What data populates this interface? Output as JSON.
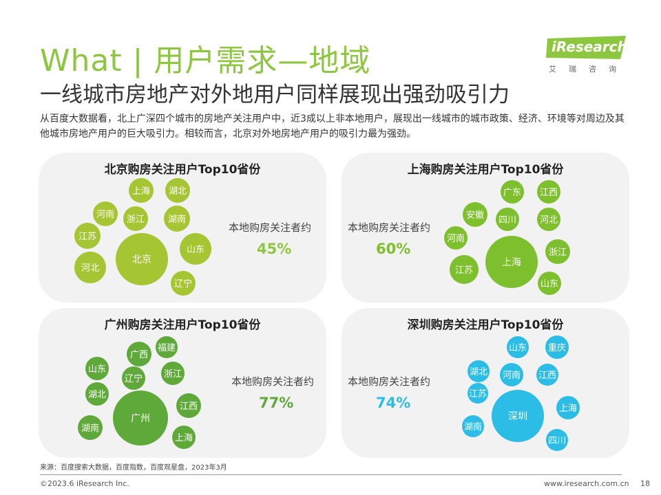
{
  "header": {
    "title": "What | 用户需求—地域",
    "subtitle": "一线城市房地产对外地用户同样展现出强劲吸引力",
    "description": "从百度大数据看，北上广深四个城市的房地产关注用户中，近3成以上非本地用户，展现出一线城市的城市政策、经济、环境等对周边及其他城市房地产用户的巨大吸引力。相较而言，北京对外地房地产用户的吸引力最为强劲。"
  },
  "logo": {
    "text": "iResearch",
    "sub": "艾瑞咨询",
    "color": "#8dc63f"
  },
  "chart_data": [
    {
      "type": "bubble",
      "title": "北京购房关注用户Top10省份",
      "color": "#a6c532",
      "local_label": "本地购房关注者约",
      "local_value": "45%",
      "local_value_color": "#8dc63f",
      "categories": [
        "北京",
        "上海",
        "湖北",
        "河南",
        "浙江",
        "湖南",
        "江苏",
        "山东",
        "河北",
        "辽宁"
      ]
    },
    {
      "type": "bubble",
      "title": "上海购房关注用户Top10省份",
      "color": "#7dbf2d",
      "local_label": "本地购房关注者约",
      "local_value": "60%",
      "local_value_color": "#7dbf2d",
      "categories": [
        "上海",
        "广东",
        "江西",
        "安徽",
        "四川",
        "河北",
        "河南",
        "浙江",
        "江苏",
        "山东"
      ]
    },
    {
      "type": "bubble",
      "title": "广州购房关注用户Top10省份",
      "color": "#5fa83a",
      "local_label": "本地购房关注者约",
      "local_value": "77%",
      "local_value_color": "#5fa83a",
      "categories": [
        "广州",
        "福建",
        "广西",
        "山东",
        "辽宁",
        "浙江",
        "湖北",
        "江西",
        "湖南",
        "上海"
      ]
    },
    {
      "type": "bubble",
      "title": "深圳购房关注用户Top10省份",
      "color": "#2bbde6",
      "local_label": "本地购房关注者约",
      "local_value": "74%",
      "local_value_color": "#2bbde6",
      "categories": [
        "深圳",
        "山东",
        "重庆",
        "湖北",
        "河南",
        "江西",
        "江苏",
        "上海",
        "湖南",
        "四川"
      ]
    }
  ],
  "footer": {
    "source": "来源：百度搜索大数据，百度指数，百度观星盘，2023年3月",
    "copyright": "©2023.6 iResearch Inc.",
    "site": "www.iresearch.com.cn",
    "page": "18"
  }
}
